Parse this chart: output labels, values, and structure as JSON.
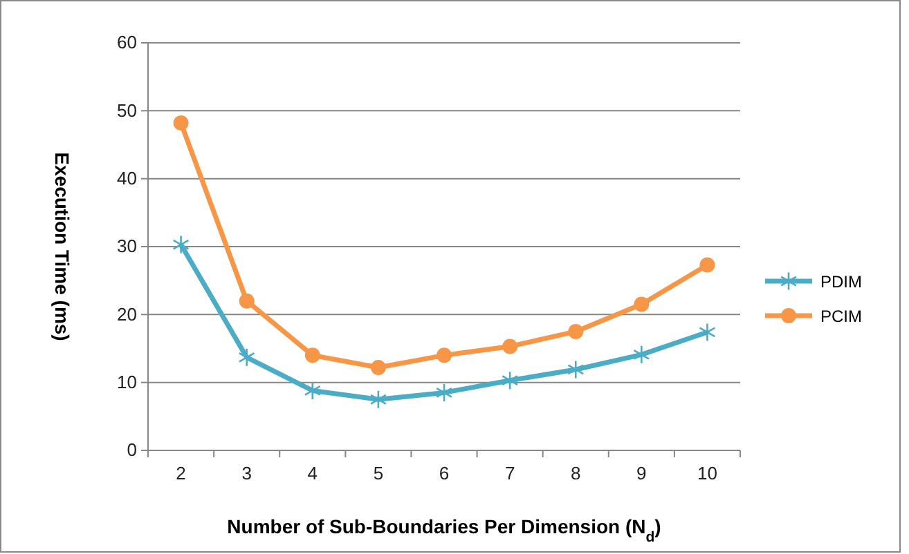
{
  "chart_data": {
    "type": "line",
    "xlabel": "Number of Sub-Boundaries Per Dimension (N$_{d}$)",
    "ylabel": "Execution Time (ms)",
    "categories": [
      "2",
      "3",
      "4",
      "5",
      "6",
      "7",
      "8",
      "9",
      "10"
    ],
    "series": [
      {
        "name": "PDIM",
        "color": "#4bacc6",
        "marker": "cross",
        "values": [
          30.3,
          13.7,
          8.8,
          7.5,
          8.5,
          10.3,
          11.9,
          14.1,
          17.4
        ]
      },
      {
        "name": "PCIM",
        "color": "#f79646",
        "marker": "circle",
        "values": [
          48.2,
          22,
          14,
          12.2,
          14,
          15.3,
          17.5,
          21.5,
          27.3
        ]
      }
    ],
    "ylim": [
      0,
      60
    ],
    "yticks": [
      0,
      10,
      20,
      30,
      40,
      50,
      60
    ],
    "grid": "y",
    "legend": "right",
    "line_style": "solid"
  }
}
